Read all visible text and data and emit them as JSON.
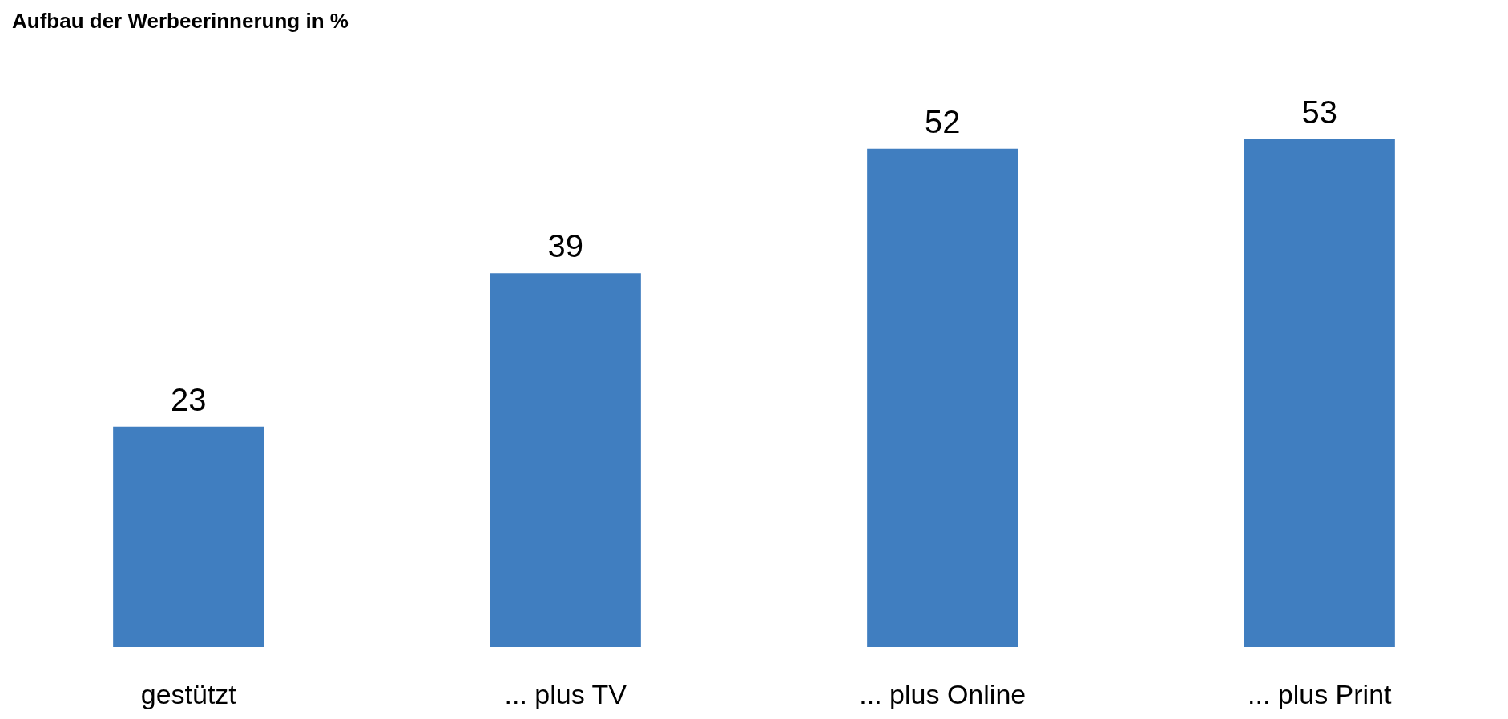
{
  "chart_data": {
    "type": "bar",
    "title": "Aufbau der Werbeerinnerung in %",
    "categories": [
      "gestützt",
      "... plus TV",
      "... plus Online",
      "... plus Print"
    ],
    "values": [
      23,
      39,
      52,
      53
    ],
    "color": "#407ec0",
    "data_labels": true
  }
}
